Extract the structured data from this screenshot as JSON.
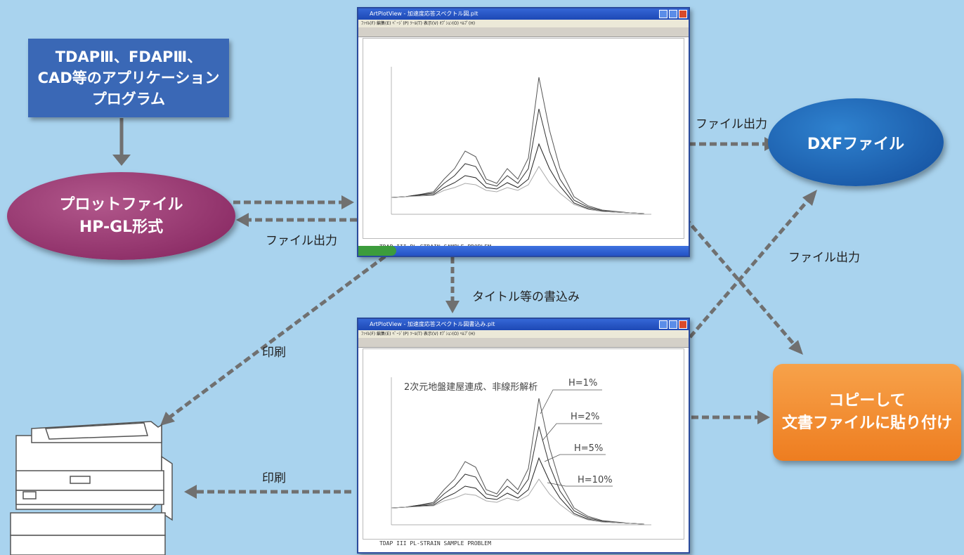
{
  "nodes": {
    "app": {
      "lines": [
        "TDAPⅢ、FDAPⅢ、",
        "CAD等のアプリケーション",
        "プログラム"
      ]
    },
    "plot_file": {
      "lines": [
        "プロットファイル",
        "HP-GL形式"
      ]
    },
    "dxf_file": {
      "label": "DXFファイル"
    },
    "copy_paste": {
      "lines": [
        "コピーして",
        "文書ファイルに貼り付け"
      ]
    }
  },
  "edge_labels": {
    "file_output_dxf": "ファイル出力",
    "file_output_plot": "ファイル出力",
    "file_output_cross": "ファイル出力",
    "title_write": "タイトル等の書込み",
    "print_upper": "印刷",
    "print_lower": "印刷"
  },
  "viewer_top": {
    "title": "ArtPlotView - 加速度応答スペクトル図.plt",
    "menu": "ﾌｧｲﾙ(F)  編集(E)  ﾍﾟｰｼﾞ(P)  ﾂｰﾙ(T)  表示(V)  ｵﾌﾟｼｮﾝ(O)  ﾍﾙﾌﾟ(H)",
    "footer": "TDAP III  PL-STRAIN SAMPLE PROBLEM"
  },
  "viewer_bottom": {
    "title": "ArtPlotView - 加速度応答スペクトル図書込み.plt",
    "menu": "ﾌｧｲﾙ(F)  編集(E)  ﾍﾟｰｼﾞ(P)  ﾂｰﾙ(T)  表示(V)  ｵﾌﾟｼｮﾝ(O)  ﾍﾙﾌﾟ(H)",
    "footer": "TDAP III  PL-STRAIN SAMPLE PROBLEM",
    "annotation": "2次元地盤建屋連成、非線形解析",
    "series_labels": [
      "H=1%",
      "H=2%",
      "H=5%",
      "H=10%"
    ]
  },
  "colors": {
    "background": "#a9d3ee",
    "arrow": "#707070",
    "app_box": "#3a68b6",
    "plot_ellipse": "#9b3a74",
    "dxf_ellipse": "#1f66b8",
    "copy_box": "#f08a2c"
  }
}
